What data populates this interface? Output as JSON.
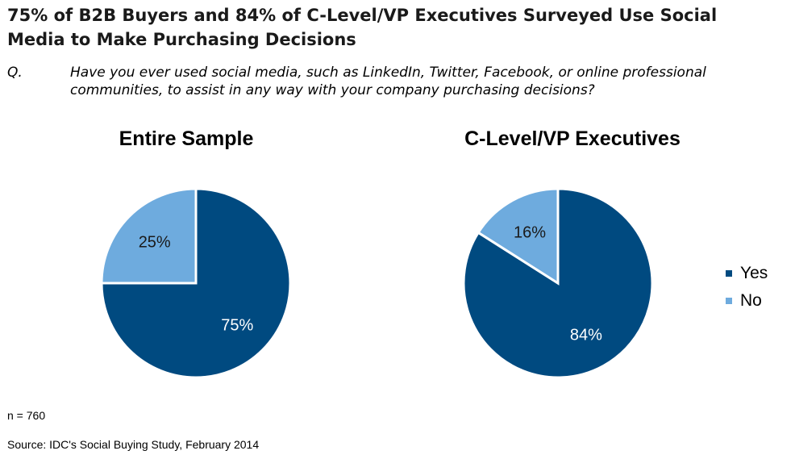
{
  "header": {
    "title": "75% of B2B Buyers and 84% of C-Level/VP Executives Surveyed Use Social Media to Make Purchasing Decisions",
    "question_label": "Q.",
    "question": "Have you ever used social media, such as LinkedIn, Twitter, Facebook, or online professional communities, to assist in any way with your company purchasing decisions?"
  },
  "chart_data": [
    {
      "type": "pie",
      "title": "Entire Sample",
      "categories": [
        "Yes",
        "No"
      ],
      "values": [
        75,
        25
      ],
      "labels": [
        "75%",
        "25%"
      ]
    },
    {
      "type": "pie",
      "title": "C-Level/VP Executives",
      "categories": [
        "Yes",
        "No"
      ],
      "values": [
        84,
        16
      ],
      "labels": [
        "84%",
        "16%"
      ]
    }
  ],
  "legend": {
    "placement": "right",
    "items": [
      {
        "label": "Yes",
        "color": "#004a80"
      },
      {
        "label": "No",
        "color": "#6eabde"
      }
    ]
  },
  "footer": {
    "n": "n = 760",
    "source": "Source: IDC's Social Buying Study, February 2014"
  }
}
